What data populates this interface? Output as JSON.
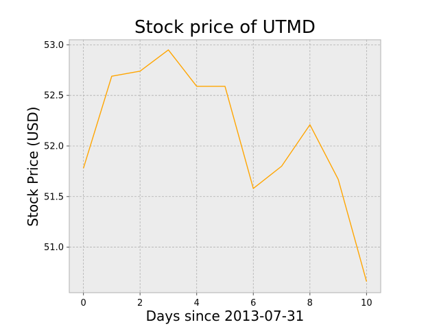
{
  "chart_data": {
    "type": "line",
    "title": "Stock price of UTMD",
    "xlabel": "Days since 2013-07-31",
    "ylabel": "Stock Price (USD)",
    "x": [
      0,
      1,
      2,
      3,
      4,
      5,
      6,
      7,
      8,
      9,
      10
    ],
    "xticks": [
      0,
      2,
      4,
      6,
      8,
      10
    ],
    "yticks": [
      51.0,
      51.5,
      52.0,
      52.5,
      53.0
    ],
    "xlim": [
      -0.5,
      10.5
    ],
    "ylim": [
      50.55,
      53.05
    ],
    "grid": true,
    "series": [
      {
        "values": [
          51.78,
          52.69,
          52.74,
          52.95,
          52.59,
          52.59,
          51.58,
          51.8,
          52.21,
          51.67,
          50.66
        ],
        "color": "#ffa500"
      }
    ],
    "colors": {
      "plot_background": "#ececec",
      "grid": "#b0b0b0",
      "axes_edge": "#b0b0b0"
    }
  }
}
